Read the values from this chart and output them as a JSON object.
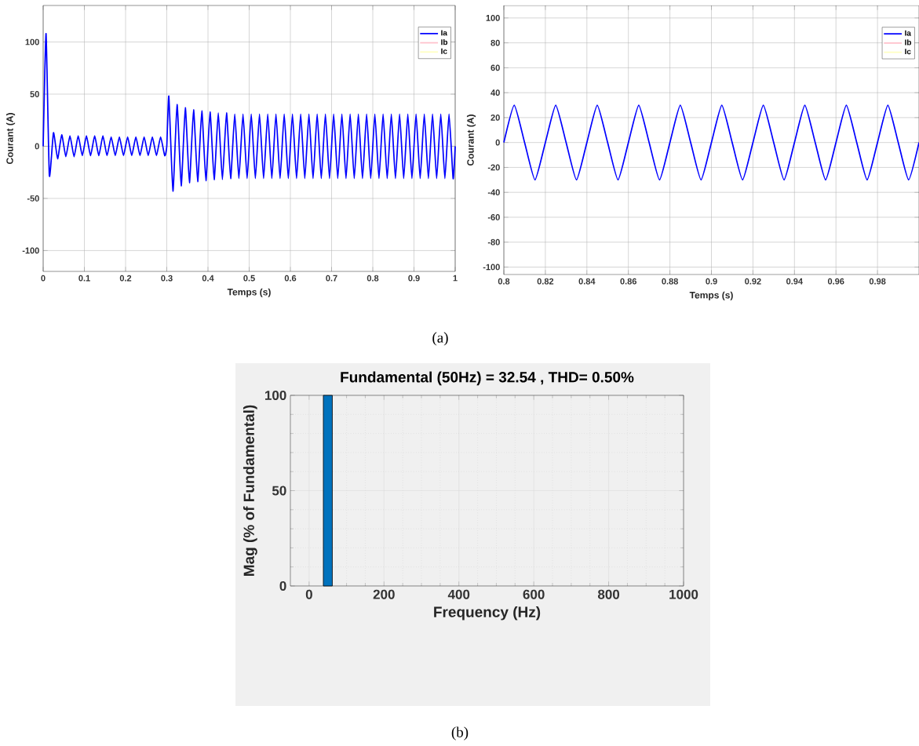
{
  "chart_data": [
    {
      "type": "line",
      "xlabel": "Temps (s)",
      "ylabel": "Courant (A)",
      "xlim": [
        0,
        1
      ],
      "ylim": [
        -120,
        135
      ],
      "xticks": [
        0,
        0.1,
        0.2,
        0.3,
        0.4,
        0.5,
        0.6,
        0.7,
        0.8,
        0.9,
        1
      ],
      "yticks": [
        -100,
        -50,
        0,
        50,
        100
      ],
      "grid": true,
      "legend": "top right",
      "annotations": [
        "(a)"
      ],
      "series": [
        {
          "name": "Ia",
          "color": "#0000ff",
          "x": [
            0,
            0.007,
            0.015,
            0.025,
            0.035,
            0.045,
            0.055,
            0.065,
            0.075,
            0.085,
            0.095,
            0.105,
            0.115,
            0.125,
            0.135,
            0.145,
            0.155,
            0.165,
            0.175,
            0.185,
            0.195,
            0.205,
            0.215,
            0.225,
            0.235,
            0.245,
            0.255,
            0.265,
            0.275,
            0.285,
            0.295,
            0.3,
            0.305,
            0.315,
            0.325,
            0.335,
            0.345,
            0.355,
            0.365,
            0.375,
            0.385,
            0.395,
            0.405,
            0.415,
            0.425,
            0.435,
            0.445,
            0.455,
            0.465,
            0.475,
            0.485,
            0.495,
            0.505,
            0.515,
            0.525,
            0.535,
            0.545,
            0.555,
            0.565,
            0.575,
            0.585,
            0.595,
            0.605,
            0.615,
            0.625,
            0.635,
            0.645,
            0.655,
            0.665,
            0.675,
            0.685,
            0.695,
            0.705,
            0.715,
            0.725,
            0.735,
            0.745,
            0.755,
            0.765,
            0.775,
            0.785,
            0.795,
            0.805,
            0.815,
            0.825,
            0.835,
            0.845,
            0.855,
            0.865,
            0.875,
            0.885,
            0.895,
            0.905,
            0.915,
            0.925,
            0.935,
            0.945,
            0.955,
            0.965,
            0.975,
            0.985,
            0.995,
            1.0
          ],
          "values": [
            0,
            108,
            -28,
            13,
            -12,
            11,
            -10,
            10,
            -10,
            10,
            -9,
            10,
            -9,
            10,
            -9,
            10,
            -9,
            9,
            -9,
            9,
            -9,
            9,
            -9,
            9,
            -9,
            9,
            -9,
            9,
            -9,
            9,
            -9,
            0,
            48,
            -43,
            40,
            -38,
            37,
            -35,
            35,
            -34,
            34,
            -33,
            33,
            -32,
            32,
            -32,
            32,
            -31,
            31,
            -31,
            31,
            -31,
            31,
            -31,
            31,
            -31,
            31,
            -31,
            31,
            -31,
            31,
            -31,
            31,
            -31,
            31,
            -31,
            31,
            -31,
            31,
            -31,
            31,
            -31,
            31,
            -31,
            31,
            -31,
            31,
            -31,
            31,
            -31,
            31,
            -31,
            31,
            -31,
            31,
            -31,
            31,
            -31,
            31,
            -31,
            31,
            -31,
            31,
            -31,
            31,
            -31,
            31,
            -31,
            31,
            -31,
            31,
            -31,
            0
          ]
        },
        {
          "name": "Ib",
          "color": "#ffc0cb"
        },
        {
          "name": "Ic",
          "color": "#ffffc0"
        }
      ]
    },
    {
      "type": "line",
      "xlabel": "Temps (s)",
      "ylabel": "Courant (A)",
      "xlim": [
        0.8,
        1.0
      ],
      "ylim": [
        -106,
        110
      ],
      "xticks": [
        0.8,
        0.82,
        0.84,
        0.86,
        0.88,
        0.9,
        0.92,
        0.94,
        0.96,
        0.98
      ],
      "yticks": [
        -100,
        -80,
        -60,
        -40,
        -20,
        0,
        20,
        40,
        60,
        80,
        100
      ],
      "grid": true,
      "legend": "top right",
      "series": [
        {
          "name": "Ia",
          "color": "#0000ff",
          "x": [
            0.8,
            0.805,
            0.81,
            0.815,
            0.82,
            0.825,
            0.83,
            0.835,
            0.84,
            0.845,
            0.85,
            0.855,
            0.86,
            0.865,
            0.87,
            0.875,
            0.88,
            0.885,
            0.89,
            0.895,
            0.9,
            0.905,
            0.91,
            0.915,
            0.92,
            0.925,
            0.93,
            0.935,
            0.94,
            0.945,
            0.95,
            0.955,
            0.96,
            0.965,
            0.97,
            0.975,
            0.98,
            0.985,
            0.99,
            0.995,
            1.0
          ],
          "values": [
            0,
            30,
            0,
            -30,
            0,
            30,
            0,
            -30,
            0,
            30,
            0,
            -30,
            0,
            30,
            0,
            -30,
            0,
            30,
            0,
            -30,
            0,
            30,
            0,
            -30,
            0,
            30,
            0,
            -30,
            0,
            30,
            0,
            -30,
            0,
            30,
            0,
            -30,
            0,
            30,
            0,
            -30,
            0
          ]
        },
        {
          "name": "Ib",
          "color": "#ffc0cb"
        },
        {
          "name": "Ic",
          "color": "#ffffc0"
        }
      ]
    },
    {
      "type": "bar",
      "title": "Fundamental (50Hz) = 32.54 , THD= 0.50%",
      "xlabel": "Frequency (Hz)",
      "ylabel": "Mag (% of Fundamental)",
      "xlim": [
        -50,
        1000
      ],
      "ylim": [
        0,
        100
      ],
      "xticks": [
        0,
        200,
        400,
        600,
        800,
        1000
      ],
      "yticks": [
        0,
        50,
        100
      ],
      "grid": true,
      "annotations": [
        "(b)"
      ],
      "x": [
        50
      ],
      "values": [
        100
      ],
      "color": "#0072bd"
    }
  ]
}
